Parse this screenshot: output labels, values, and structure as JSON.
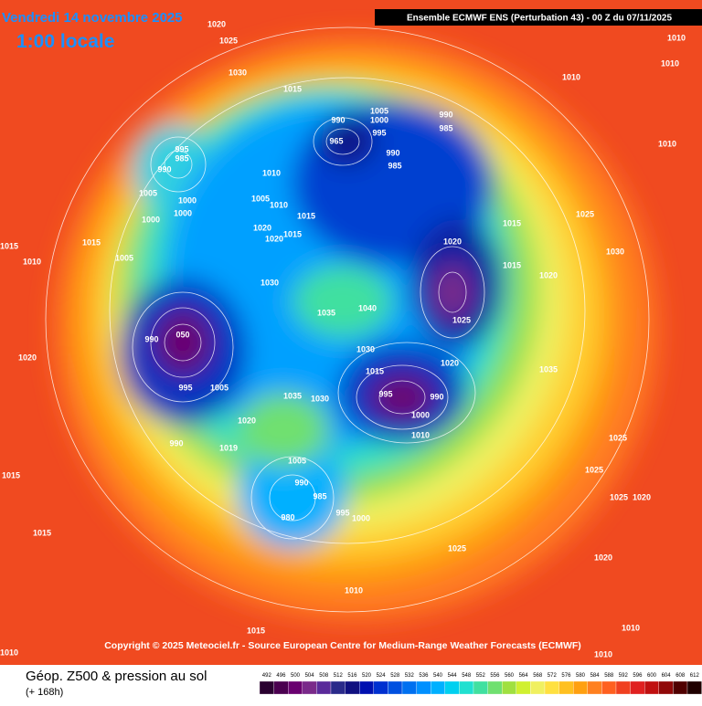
{
  "header": {
    "date": "Vendredi 14 novembre 2025",
    "time": "1:00 locale",
    "model": "Ensemble ECMWF ENS  (Perturbation 43)  - 00 Z du 07/11/2025"
  },
  "copyright": "Copyright © 2025 Meteociel.fr - Source European Centre for Medium-Range Weather Forecasts (ECMWF)",
  "legend": {
    "title": "Géop. Z500 & pression au sol",
    "step": "(+ 168h)",
    "levels": [
      492,
      496,
      500,
      504,
      508,
      512,
      516,
      520,
      524,
      528,
      532,
      536,
      540,
      544,
      548,
      552,
      556,
      560,
      564,
      568,
      572,
      576,
      580,
      584,
      588,
      592,
      596,
      600,
      604,
      608,
      612
    ],
    "colors": [
      "#2a0030",
      "#4b0050",
      "#6a0070",
      "#7a2a8a",
      "#5a2a9a",
      "#2a2a8a",
      "#101080",
      "#0010b0",
      "#0030d0",
      "#0050e0",
      "#0070f0",
      "#0090ff",
      "#00b0ff",
      "#00d0f0",
      "#20e0d0",
      "#40e0a0",
      "#70e070",
      "#a0e040",
      "#d0f030",
      "#f0f060",
      "#ffe040",
      "#ffc020",
      "#ffa010",
      "#ff8020",
      "#ff6020",
      "#f04020",
      "#e02020",
      "#c01010",
      "#900808",
      "#500000",
      "#200000"
    ]
  },
  "pressure_labels": [
    "1020",
    "1025",
    "1030",
    "1015",
    "1010",
    "1010",
    "1010",
    "1010",
    "990",
    "1005",
    "1000",
    "995",
    "965",
    "990",
    "985",
    "990",
    "985",
    "995",
    "985",
    "990",
    "1005",
    "1000",
    "1000",
    "1000",
    "1010",
    "1005",
    "1010",
    "1015",
    "1020",
    "1015",
    "1020",
    "1020",
    "1015",
    "1025",
    "1030",
    "1015",
    "1020",
    "1030",
    "1040",
    "1035",
    "1025",
    "1030",
    "1020",
    "1015",
    "995",
    "990",
    "1000",
    "1010",
    "1035",
    "1025",
    "1025",
    "1025",
    "1020",
    "1020",
    "990",
    "050",
    "995",
    "1005",
    "1035",
    "1030",
    "1020",
    "1019",
    "990",
    "1005",
    "990",
    "985",
    "980",
    "995",
    "1000",
    "1025",
    "1010",
    "1015",
    "1010",
    "1015",
    "1015",
    "1020",
    "1005",
    "1015",
    "1015",
    "1010",
    "1010",
    "1010"
  ]
}
